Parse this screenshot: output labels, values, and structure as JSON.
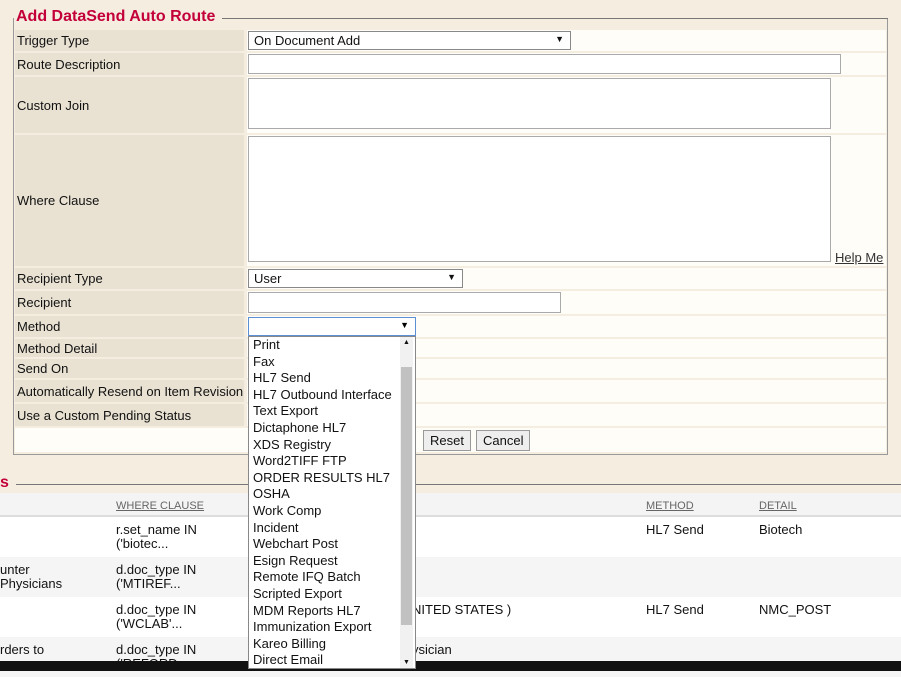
{
  "form": {
    "title": "Add DataSend Auto Route",
    "trigger_type_label": "Trigger Type",
    "trigger_type_value": "On Document Add",
    "route_description_label": "Route Description",
    "custom_join_label": "Custom Join",
    "where_clause_label": "Where Clause",
    "help_me": "Help Me",
    "recipient_type_label": "Recipient Type",
    "recipient_type_value": "User",
    "recipient_label": "Recipient",
    "method_label": "Method",
    "method_value": "",
    "method_detail_label": "Method Detail",
    "send_on_label": "Send On",
    "auto_resend_label": "Automatically Resend on Item Revision",
    "custom_pending_label": "Use a Custom Pending Status",
    "reset": "Reset",
    "cancel": "Cancel"
  },
  "method_options": [
    "Print",
    "Fax",
    "HL7 Send",
    "HL7 Outbound Interface",
    "Text Export",
    "Dictaphone HL7",
    "XDS Registry",
    "Word2TIFF FTP",
    "ORDER RESULTS HL7",
    "OSHA",
    "Work Comp",
    "Incident",
    "Webchart Post",
    "Esign Request",
    "Remote IFQ Batch",
    "Scripted Export",
    "MDM Reports HL7",
    "Immunization Export",
    "Kareo Billing",
    "Direct Email"
  ],
  "list": {
    "heading": "s",
    "headers": {
      "where": "WHERE CLAUSE",
      "method": "METHOD",
      "detail": "DETAIL"
    },
    "rows": [
      {
        "desc": "",
        "where": "r.set_name IN ('biotec...",
        "mid": "",
        "method": "HL7 Send",
        "detail": "Biotech"
      },
      {
        "desc": "unter Physicians",
        "where": "d.doc_type IN ('MTIREF...",
        "mid": "",
        "method": "",
        "detail": ""
      },
      {
        "desc": "",
        "where": "d.doc_type IN ('WCLAB'...",
        "mid": "NITED STATES )",
        "method": "HL7 Send",
        "detail": "NMC_POST"
      },
      {
        "desc": "rders to",
        "where": "d.doc_type IN ('REFORD...",
        "mid": "ysician",
        "method": "",
        "detail": ""
      }
    ]
  }
}
